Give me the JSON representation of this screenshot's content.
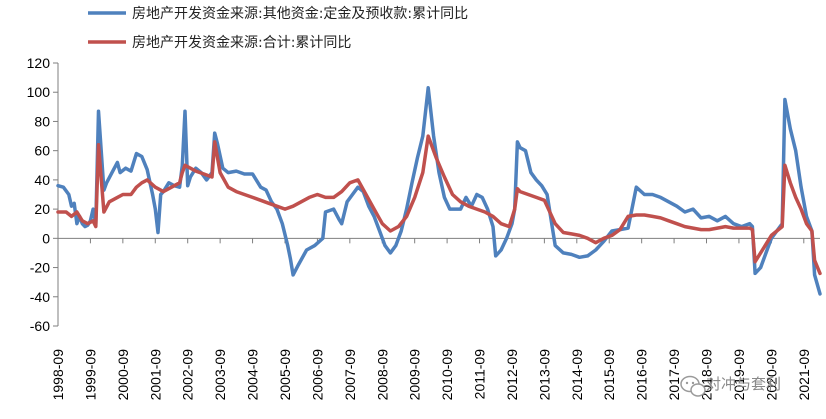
{
  "chart_data": {
    "type": "line",
    "title": "",
    "xlabel": "",
    "ylabel": "",
    "ylim": [
      -60,
      120
    ],
    "yticks": [
      -60,
      -40,
      -20,
      0,
      20,
      40,
      60,
      80,
      100,
      120
    ],
    "x_range": [
      "1998-09",
      "2022-03"
    ],
    "xticks": [
      "1998-09",
      "1999-09",
      "2000-09",
      "2001-09",
      "2002-09",
      "2003-09",
      "2004-09",
      "2005-09",
      "2006-09",
      "2007-09",
      "2008-09",
      "2009-09",
      "2010-09",
      "2011-09",
      "2012-09",
      "2013-09",
      "2014-09",
      "2015-09",
      "2016-09",
      "2017-09",
      "2018-09",
      "2019-09",
      "2020-09",
      "2021-09"
    ],
    "grid": false,
    "legend_position": "top-left",
    "series": [
      {
        "name": "房地产开发资金来源:其他资金:定金及预收款:累计同比",
        "color": "#4F81BD",
        "points": [
          [
            "1998-09",
            36
          ],
          [
            "1998-11",
            35
          ],
          [
            "1999-01",
            30
          ],
          [
            "1999-02",
            22
          ],
          [
            "1999-03",
            24
          ],
          [
            "1999-04",
            10
          ],
          [
            "1999-05",
            15
          ],
          [
            "1999-06",
            10
          ],
          [
            "1999-07",
            8
          ],
          [
            "1999-08",
            9
          ],
          [
            "1999-09",
            12
          ],
          [
            "1999-10",
            20
          ],
          [
            "1999-11",
            10
          ],
          [
            "1999-12",
            87
          ],
          [
            "2000-02",
            33
          ],
          [
            "2000-03",
            38
          ],
          [
            "2000-05",
            45
          ],
          [
            "2000-07",
            52
          ],
          [
            "2000-08",
            45
          ],
          [
            "2000-10",
            48
          ],
          [
            "2000-12",
            46
          ],
          [
            "2001-02",
            58
          ],
          [
            "2001-04",
            56
          ],
          [
            "2001-06",
            47
          ],
          [
            "2001-08",
            30
          ],
          [
            "2001-09",
            20
          ],
          [
            "2001-10",
            4
          ],
          [
            "2001-11",
            30
          ],
          [
            "2001-12",
            32
          ],
          [
            "2002-02",
            38
          ],
          [
            "2002-04",
            36
          ],
          [
            "2002-06",
            35
          ],
          [
            "2002-07",
            50
          ],
          [
            "2002-08",
            87
          ],
          [
            "2002-09",
            36
          ],
          [
            "2002-10",
            42
          ],
          [
            "2002-12",
            48
          ],
          [
            "2003-02",
            45
          ],
          [
            "2003-04",
            40
          ],
          [
            "2003-06",
            45
          ],
          [
            "2003-07",
            72
          ],
          [
            "2003-08",
            65
          ],
          [
            "2003-10",
            48
          ],
          [
            "2003-12",
            45
          ],
          [
            "2004-03",
            46
          ],
          [
            "2004-06",
            44
          ],
          [
            "2004-09",
            44
          ],
          [
            "2004-12",
            35
          ],
          [
            "2005-02",
            33
          ],
          [
            "2005-04",
            25
          ],
          [
            "2005-06",
            20
          ],
          [
            "2005-08",
            10
          ],
          [
            "2005-10",
            -5
          ],
          [
            "2005-11",
            -14
          ],
          [
            "2005-12",
            -25
          ],
          [
            "2006-02",
            -18
          ],
          [
            "2006-05",
            -8
          ],
          [
            "2006-08",
            -5
          ],
          [
            "2006-11",
            0
          ],
          [
            "2006-12",
            18
          ],
          [
            "2007-03",
            20
          ],
          [
            "2007-05",
            13
          ],
          [
            "2007-06",
            10
          ],
          [
            "2007-08",
            25
          ],
          [
            "2007-10",
            30
          ],
          [
            "2007-12",
            35
          ],
          [
            "2008-02",
            32
          ],
          [
            "2008-04",
            22
          ],
          [
            "2008-06",
            15
          ],
          [
            "2008-08",
            5
          ],
          [
            "2008-10",
            -5
          ],
          [
            "2008-12",
            -10
          ],
          [
            "2009-02",
            -5
          ],
          [
            "2009-04",
            5
          ],
          [
            "2009-06",
            20
          ],
          [
            "2009-08",
            38
          ],
          [
            "2009-10",
            55
          ],
          [
            "2009-12",
            70
          ],
          [
            "2010-02",
            103
          ],
          [
            "2010-04",
            70
          ],
          [
            "2010-06",
            45
          ],
          [
            "2010-08",
            28
          ],
          [
            "2010-10",
            20
          ],
          [
            "2010-12",
            20
          ],
          [
            "2011-02",
            20
          ],
          [
            "2011-04",
            28
          ],
          [
            "2011-06",
            22
          ],
          [
            "2011-08",
            30
          ],
          [
            "2011-10",
            28
          ],
          [
            "2011-12",
            20
          ],
          [
            "2012-02",
            8
          ],
          [
            "2012-03",
            -12
          ],
          [
            "2012-05",
            -8
          ],
          [
            "2012-07",
            0
          ],
          [
            "2012-09",
            10
          ],
          [
            "2012-10",
            20
          ],
          [
            "2012-11",
            66
          ],
          [
            "2012-12",
            62
          ],
          [
            "2013-02",
            60
          ],
          [
            "2013-04",
            45
          ],
          [
            "2013-06",
            40
          ],
          [
            "2013-08",
            36
          ],
          [
            "2013-10",
            30
          ],
          [
            "2014-01",
            -5
          ],
          [
            "2014-04",
            -10
          ],
          [
            "2014-07",
            -11
          ],
          [
            "2014-10",
            -13
          ],
          [
            "2015-01",
            -12
          ],
          [
            "2015-04",
            -8
          ],
          [
            "2015-07",
            -2
          ],
          [
            "2015-10",
            5
          ],
          [
            "2016-01",
            6
          ],
          [
            "2016-04",
            7
          ],
          [
            "2016-07",
            35
          ],
          [
            "2016-10",
            30
          ],
          [
            "2017-01",
            30
          ],
          [
            "2017-04",
            28
          ],
          [
            "2017-07",
            25
          ],
          [
            "2017-10",
            22
          ],
          [
            "2018-01",
            18
          ],
          [
            "2018-04",
            20
          ],
          [
            "2018-07",
            14
          ],
          [
            "2018-10",
            15
          ],
          [
            "2019-01",
            12
          ],
          [
            "2019-04",
            15
          ],
          [
            "2019-07",
            10
          ],
          [
            "2019-10",
            8
          ],
          [
            "2020-01",
            10
          ],
          [
            "2020-02",
            8
          ],
          [
            "2020-03",
            -24
          ],
          [
            "2020-05",
            -20
          ],
          [
            "2020-07",
            -10
          ],
          [
            "2020-09",
            0
          ],
          [
            "2020-11",
            5
          ],
          [
            "2021-01",
            10
          ],
          [
            "2021-02",
            95
          ],
          [
            "2021-04",
            75
          ],
          [
            "2021-06",
            60
          ],
          [
            "2021-08",
            35
          ],
          [
            "2021-10",
            15
          ],
          [
            "2021-12",
            5
          ],
          [
            "2022-01",
            -25
          ],
          [
            "2022-03",
            -38
          ]
        ]
      },
      {
        "name": "房地产开发资金来源:合计:累计同比",
        "color": "#C0504D",
        "points": [
          [
            "1998-09",
            18
          ],
          [
            "1998-12",
            18
          ],
          [
            "1999-02",
            15
          ],
          [
            "1999-04",
            18
          ],
          [
            "1999-06",
            12
          ],
          [
            "1999-08",
            10
          ],
          [
            "1999-10",
            12
          ],
          [
            "1999-11",
            8
          ],
          [
            "1999-12",
            64
          ],
          [
            "2000-02",
            18
          ],
          [
            "2000-04",
            25
          ],
          [
            "2000-07",
            28
          ],
          [
            "2000-09",
            30
          ],
          [
            "2000-12",
            30
          ],
          [
            "2001-02",
            35
          ],
          [
            "2001-04",
            38
          ],
          [
            "2001-06",
            40
          ],
          [
            "2001-09",
            35
          ],
          [
            "2001-12",
            32
          ],
          [
            "2002-03",
            35
          ],
          [
            "2002-06",
            38
          ],
          [
            "2002-07",
            45
          ],
          [
            "2002-08",
            50
          ],
          [
            "2002-10",
            48
          ],
          [
            "2002-12",
            46
          ],
          [
            "2003-03",
            44
          ],
          [
            "2003-06",
            42
          ],
          [
            "2003-07",
            66
          ],
          [
            "2003-09",
            45
          ],
          [
            "2003-12",
            35
          ],
          [
            "2004-03",
            32
          ],
          [
            "2004-06",
            30
          ],
          [
            "2004-09",
            28
          ],
          [
            "2004-12",
            26
          ],
          [
            "2005-03",
            24
          ],
          [
            "2005-06",
            22
          ],
          [
            "2005-09",
            20
          ],
          [
            "2005-12",
            22
          ],
          [
            "2006-03",
            25
          ],
          [
            "2006-06",
            28
          ],
          [
            "2006-09",
            30
          ],
          [
            "2006-12",
            28
          ],
          [
            "2007-03",
            28
          ],
          [
            "2007-06",
            32
          ],
          [
            "2007-09",
            38
          ],
          [
            "2007-12",
            40
          ],
          [
            "2008-03",
            30
          ],
          [
            "2008-06",
            20
          ],
          [
            "2008-09",
            10
          ],
          [
            "2008-12",
            5
          ],
          [
            "2009-03",
            8
          ],
          [
            "2009-06",
            15
          ],
          [
            "2009-09",
            28
          ],
          [
            "2009-12",
            45
          ],
          [
            "2010-02",
            70
          ],
          [
            "2010-05",
            55
          ],
          [
            "2010-08",
            42
          ],
          [
            "2010-11",
            30
          ],
          [
            "2011-02",
            25
          ],
          [
            "2011-05",
            22
          ],
          [
            "2011-08",
            20
          ],
          [
            "2011-11",
            18
          ],
          [
            "2012-02",
            15
          ],
          [
            "2012-05",
            10
          ],
          [
            "2012-08",
            8
          ],
          [
            "2012-10",
            20
          ],
          [
            "2012-11",
            34
          ],
          [
            "2012-12",
            32
          ],
          [
            "2013-03",
            30
          ],
          [
            "2013-06",
            28
          ],
          [
            "2013-09",
            26
          ],
          [
            "2014-01",
            10
          ],
          [
            "2014-04",
            4
          ],
          [
            "2014-07",
            3
          ],
          [
            "2014-10",
            2
          ],
          [
            "2015-01",
            0
          ],
          [
            "2015-04",
            -3
          ],
          [
            "2015-07",
            0
          ],
          [
            "2015-10",
            2
          ],
          [
            "2016-01",
            6
          ],
          [
            "2016-04",
            15
          ],
          [
            "2016-07",
            16
          ],
          [
            "2016-10",
            16
          ],
          [
            "2017-01",
            15
          ],
          [
            "2017-04",
            14
          ],
          [
            "2017-07",
            12
          ],
          [
            "2017-10",
            10
          ],
          [
            "2018-01",
            8
          ],
          [
            "2018-04",
            7
          ],
          [
            "2018-07",
            6
          ],
          [
            "2018-10",
            6
          ],
          [
            "2019-01",
            7
          ],
          [
            "2019-04",
            8
          ],
          [
            "2019-07",
            7
          ],
          [
            "2019-10",
            7
          ],
          [
            "2020-01",
            7
          ],
          [
            "2020-02",
            6
          ],
          [
            "2020-03",
            -16
          ],
          [
            "2020-05",
            -10
          ],
          [
            "2020-07",
            -4
          ],
          [
            "2020-09",
            2
          ],
          [
            "2020-11",
            5
          ],
          [
            "2021-01",
            8
          ],
          [
            "2021-02",
            50
          ],
          [
            "2021-04",
            38
          ],
          [
            "2021-06",
            28
          ],
          [
            "2021-08",
            20
          ],
          [
            "2021-10",
            10
          ],
          [
            "2021-12",
            5
          ],
          [
            "2022-01",
            -15
          ],
          [
            "2022-03",
            -24
          ]
        ]
      }
    ]
  },
  "watermark": {
    "text": "对冲与套利",
    "icon": "wechat-icon"
  }
}
